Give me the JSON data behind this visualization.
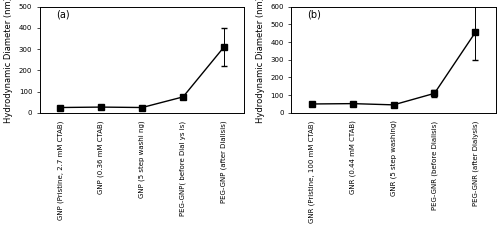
{
  "panel_a": {
    "title": "(a)",
    "ylabel": "Hydrodynamic Diameter (nm)",
    "ylim": [
      0,
      500
    ],
    "yticks": [
      0,
      100,
      200,
      300,
      400,
      500
    ],
    "values": [
      25,
      27,
      25,
      75,
      310
    ],
    "errors": [
      2,
      2,
      2,
      10,
      90
    ],
    "categories": [
      "GNP (Pristine, 2.7 mM CTAB)",
      "GNP (0.36 mM CTAB)",
      "GNP (5 step washi ng)",
      "PEG-GNP( before Dial ys is)",
      "PEG-GNP (after Dialisis)"
    ]
  },
  "panel_b": {
    "title": "(b)",
    "ylabel": "Hydrodynamic Diameter (nm)",
    "ylim": [
      0,
      600
    ],
    "yticks": [
      0,
      100,
      200,
      300,
      400,
      500,
      600
    ],
    "values": [
      50,
      52,
      45,
      110,
      455
    ],
    "errors": [
      3,
      3,
      3,
      20,
      155
    ],
    "categories": [
      "GNR (Pristine, 100 mM CTAB)",
      "GNR (0.44 mM CTAB)",
      "GNR (5 step washing)",
      "PEG-GNR (before Dialisis)",
      "PEG-GNR (after Dialysis)"
    ]
  },
  "marker": "s",
  "markersize": 4,
  "linewidth": 1.0,
  "line_color": "black",
  "capsize": 2.5,
  "tick_labelsize": 5.0,
  "axis_labelsize": 6.0,
  "title_fontsize": 7,
  "figure_facecolor": "#ffffff"
}
